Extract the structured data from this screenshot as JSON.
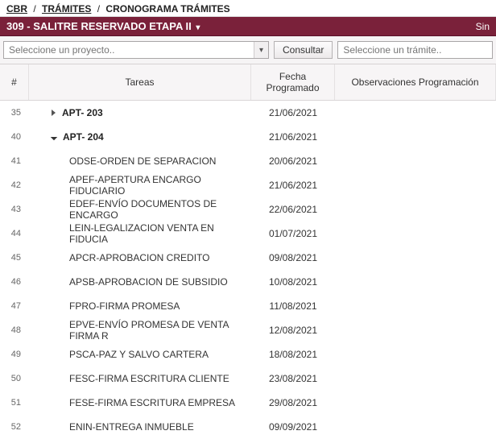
{
  "breadcrumb": {
    "root": "CBR",
    "mid": "TRÁMITES",
    "leaf": "CRONOGRAMA TRÁMITES"
  },
  "project_bar": {
    "title": "309 - SALITRE RESERVADO ETAPA II",
    "right": "Sin"
  },
  "toolbar": {
    "project_placeholder": "Seleccione un proyecto..",
    "consultar_label": "Consultar",
    "tramite_placeholder": "Seleccione un trámite.."
  },
  "columns": {
    "num": "#",
    "tareas": "Tareas",
    "fecha": "Fecha Programado",
    "obs": "Observaciones Programación"
  },
  "rows": [
    {
      "num": "35",
      "task": "APT- 203",
      "date": "21/06/2021",
      "style": "parent-collapsed",
      "indent": 1
    },
    {
      "num": "40",
      "task": "APT- 204",
      "date": "21/06/2021",
      "style": "parent-expanded",
      "indent": 1
    },
    {
      "num": "41",
      "task": "ODSE-ORDEN DE SEPARACION",
      "date": "20/06/2021",
      "style": "child",
      "indent": 2
    },
    {
      "num": "42",
      "task": "APEF-APERTURA ENCARGO FIDUCIARIO",
      "date": "21/06/2021",
      "style": "child",
      "indent": 2
    },
    {
      "num": "43",
      "task": "EDEF-ENVÍO DOCUMENTOS DE ENCARGO",
      "date": "22/06/2021",
      "style": "child",
      "indent": 2
    },
    {
      "num": "44",
      "task": "LEIN-LEGALIZACION VENTA EN FIDUCIA",
      "date": "01/07/2021",
      "style": "child",
      "indent": 2
    },
    {
      "num": "45",
      "task": "APCR-APROBACION CREDITO",
      "date": "09/08/2021",
      "style": "child",
      "indent": 2
    },
    {
      "num": "46",
      "task": "APSB-APROBACION DE SUBSIDIO",
      "date": "10/08/2021",
      "style": "child",
      "indent": 2
    },
    {
      "num": "47",
      "task": "FPRO-FIRMA PROMESA",
      "date": "11/08/2021",
      "style": "child",
      "indent": 2
    },
    {
      "num": "48",
      "task": "EPVE-ENVÍO PROMESA DE VENTA FIRMA R",
      "date": "12/08/2021",
      "style": "child",
      "indent": 2
    },
    {
      "num": "49",
      "task": "PSCA-PAZ Y SALVO CARTERA",
      "date": "18/08/2021",
      "style": "child",
      "indent": 2
    },
    {
      "num": "50",
      "task": "FESC-FIRMA ESCRITURA CLIENTE",
      "date": "23/08/2021",
      "style": "child",
      "indent": 2
    },
    {
      "num": "51",
      "task": "FESE-FIRMA ESCRITURA EMPRESA",
      "date": "29/08/2021",
      "style": "child",
      "indent": 2
    },
    {
      "num": "52",
      "task": "ENIN-ENTREGA INMUEBLE",
      "date": "09/09/2021",
      "style": "child",
      "indent": 2
    }
  ]
}
